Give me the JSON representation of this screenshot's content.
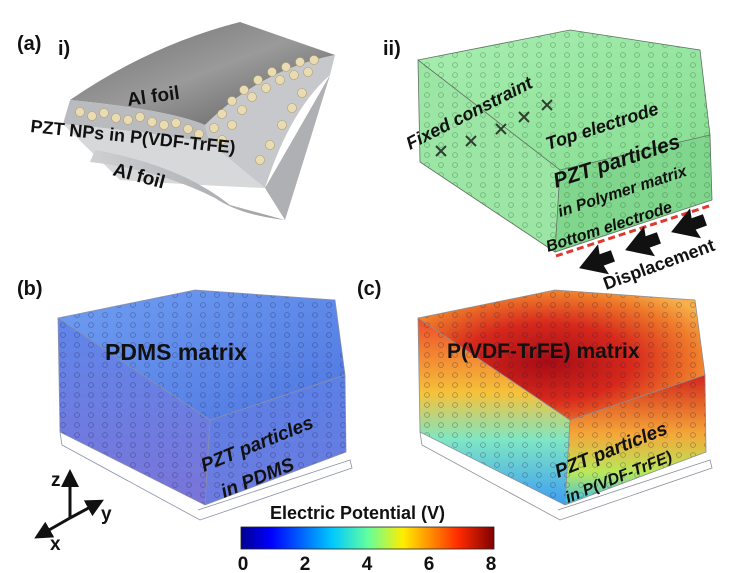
{
  "panel_labels": {
    "a": "(a)",
    "i": "i)",
    "ii": "ii)",
    "b": "(b)",
    "c": "(c)"
  },
  "panel_i": {
    "top_foil": "Al foil",
    "middle": "PZT NPs in P(VDF-TrFE)",
    "bottom_foil": "Al foil"
  },
  "panel_ii": {
    "fixed": "Fixed constraint",
    "top_electrode": "Top electrode",
    "particles": "PZT particles",
    "matrix": "in Polymer matrix",
    "bottom_electrode": "Bottom electrode",
    "displacement": "Displacement"
  },
  "panel_b": {
    "matrix": "PDMS matrix",
    "particles_1": "PZT particles",
    "particles_2": "in PDMS"
  },
  "panel_c": {
    "matrix": "P(VDF-TrFE) matrix",
    "particles_1": "PZT particles",
    "particles_2": "in P(VDF-TrFE)"
  },
  "axes": {
    "z": "z",
    "y": "y",
    "x": "x"
  },
  "colorbar": {
    "title": "Electric Potential (V)",
    "ticks": [
      "0",
      "2",
      "4",
      "6",
      "8"
    ],
    "range": [
      0,
      8
    ]
  },
  "colors": {
    "green_box": "#8ee39a",
    "pdms_blue": "#4f7fe8",
    "hot_red": "#c0101c",
    "electrode_red": "#e0392e"
  }
}
